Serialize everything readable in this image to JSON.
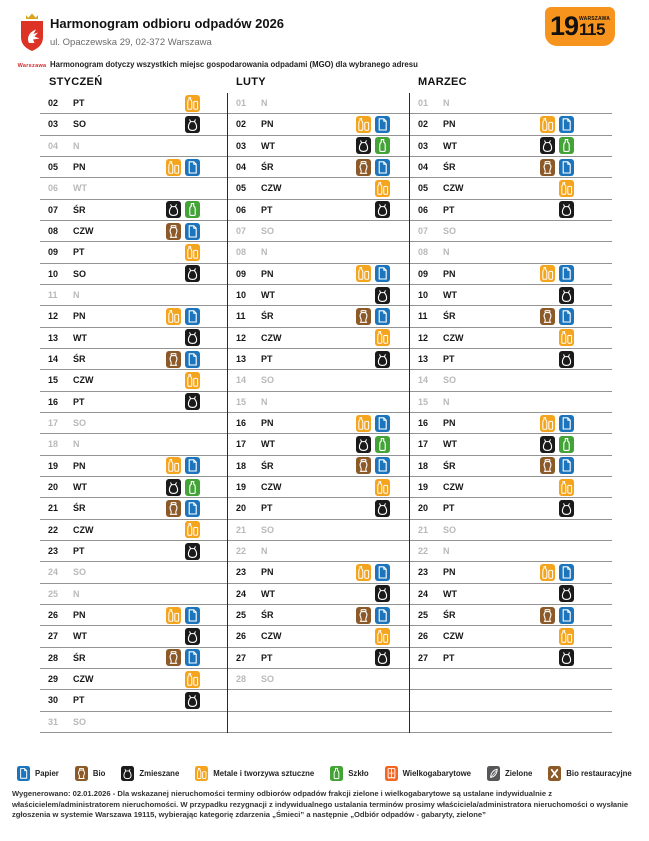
{
  "header": {
    "title": "Harmonogram odbioru odpadów 2026",
    "address": "ul. Opaczewska 29, 02-372 Warszawa",
    "note": "Harmonogram dotyczy wszystkich miejsc gospodarowania odpadami (MGO) dla wybranego adresu",
    "logo_caption": "Warszawa",
    "badge": {
      "big": "19",
      "city": "WARSZAWA",
      "small": "115"
    }
  },
  "waste_types": {
    "papier": {
      "label": "Papier",
      "color": "#1c75bc"
    },
    "bio": {
      "label": "Bio",
      "color": "#8c5a28"
    },
    "zmieszane": {
      "label": "Zmieszane",
      "color": "#1a1a1a"
    },
    "metale": {
      "label": "Metale i tworzywa sztuczne",
      "color": "#f5a41d"
    },
    "szklo": {
      "label": "Szkło",
      "color": "#43a336"
    },
    "wielkogabarytowe": {
      "label": "Wielkogabarytowe",
      "color": "#f26522"
    },
    "zielone": {
      "label": "Zielone",
      "color": "#57575a"
    },
    "bio_restauracyjne": {
      "label": "Bio restauracyjne",
      "color": "#8c5a28"
    }
  },
  "legend_order": [
    "papier",
    "bio",
    "zmieszane",
    "metale",
    "szklo",
    "wielkogabarytowe",
    "zielone",
    "bio_restauracyjne"
  ],
  "months": [
    {
      "name": "STYCZEŃ",
      "trailing_empty_rows": 0,
      "days": [
        {
          "d": "02",
          "dow": "PT",
          "active": true,
          "icons": [
            "metale"
          ]
        },
        {
          "d": "03",
          "dow": "SO",
          "active": true,
          "icons": [
            "zmieszane"
          ]
        },
        {
          "d": "04",
          "dow": "N",
          "active": false,
          "icons": []
        },
        {
          "d": "05",
          "dow": "PN",
          "active": true,
          "icons": [
            "metale",
            "papier"
          ]
        },
        {
          "d": "06",
          "dow": "WT",
          "active": false,
          "icons": []
        },
        {
          "d": "07",
          "dow": "ŚR",
          "active": true,
          "icons": [
            "zmieszane",
            "szklo"
          ]
        },
        {
          "d": "08",
          "dow": "CZW",
          "active": true,
          "icons": [
            "bio",
            "papier"
          ]
        },
        {
          "d": "09",
          "dow": "PT",
          "active": true,
          "icons": [
            "metale"
          ]
        },
        {
          "d": "10",
          "dow": "SO",
          "active": true,
          "icons": [
            "zmieszane"
          ]
        },
        {
          "d": "11",
          "dow": "N",
          "active": false,
          "icons": []
        },
        {
          "d": "12",
          "dow": "PN",
          "active": true,
          "icons": [
            "metale",
            "papier"
          ]
        },
        {
          "d": "13",
          "dow": "WT",
          "active": true,
          "icons": [
            "zmieszane"
          ]
        },
        {
          "d": "14",
          "dow": "ŚR",
          "active": true,
          "icons": [
            "bio",
            "papier"
          ]
        },
        {
          "d": "15",
          "dow": "CZW",
          "active": true,
          "icons": [
            "metale"
          ]
        },
        {
          "d": "16",
          "dow": "PT",
          "active": true,
          "icons": [
            "zmieszane"
          ]
        },
        {
          "d": "17",
          "dow": "SO",
          "active": false,
          "icons": []
        },
        {
          "d": "18",
          "dow": "N",
          "active": false,
          "icons": []
        },
        {
          "d": "19",
          "dow": "PN",
          "active": true,
          "icons": [
            "metale",
            "papier"
          ]
        },
        {
          "d": "20",
          "dow": "WT",
          "active": true,
          "icons": [
            "zmieszane",
            "szklo"
          ]
        },
        {
          "d": "21",
          "dow": "ŚR",
          "active": true,
          "icons": [
            "bio",
            "papier"
          ]
        },
        {
          "d": "22",
          "dow": "CZW",
          "active": true,
          "icons": [
            "metale"
          ]
        },
        {
          "d": "23",
          "dow": "PT",
          "active": true,
          "icons": [
            "zmieszane"
          ]
        },
        {
          "d": "24",
          "dow": "SO",
          "active": false,
          "icons": []
        },
        {
          "d": "25",
          "dow": "N",
          "active": false,
          "icons": []
        },
        {
          "d": "26",
          "dow": "PN",
          "active": true,
          "icons": [
            "metale",
            "papier"
          ]
        },
        {
          "d": "27",
          "dow": "WT",
          "active": true,
          "icons": [
            "zmieszane"
          ]
        },
        {
          "d": "28",
          "dow": "ŚR",
          "active": true,
          "icons": [
            "bio",
            "papier"
          ]
        },
        {
          "d": "29",
          "dow": "CZW",
          "active": true,
          "icons": [
            "metale"
          ]
        },
        {
          "d": "30",
          "dow": "PT",
          "active": true,
          "icons": [
            "zmieszane"
          ]
        },
        {
          "d": "31",
          "dow": "SO",
          "active": false,
          "icons": []
        }
      ]
    },
    {
      "name": "LUTY",
      "trailing_empty_rows": 2,
      "days": [
        {
          "d": "01",
          "dow": "N",
          "active": false,
          "icons": []
        },
        {
          "d": "02",
          "dow": "PN",
          "active": true,
          "icons": [
            "metale",
            "papier"
          ]
        },
        {
          "d": "03",
          "dow": "WT",
          "active": true,
          "icons": [
            "zmieszane",
            "szklo"
          ]
        },
        {
          "d": "04",
          "dow": "ŚR",
          "active": true,
          "icons": [
            "bio",
            "papier"
          ]
        },
        {
          "d": "05",
          "dow": "CZW",
          "active": true,
          "icons": [
            "metale"
          ]
        },
        {
          "d": "06",
          "dow": "PT",
          "active": true,
          "icons": [
            "zmieszane"
          ]
        },
        {
          "d": "07",
          "dow": "SO",
          "active": false,
          "icons": []
        },
        {
          "d": "08",
          "dow": "N",
          "active": false,
          "icons": []
        },
        {
          "d": "09",
          "dow": "PN",
          "active": true,
          "icons": [
            "metale",
            "papier"
          ]
        },
        {
          "d": "10",
          "dow": "WT",
          "active": true,
          "icons": [
            "zmieszane"
          ]
        },
        {
          "d": "11",
          "dow": "ŚR",
          "active": true,
          "icons": [
            "bio",
            "papier"
          ]
        },
        {
          "d": "12",
          "dow": "CZW",
          "active": true,
          "icons": [
            "metale"
          ]
        },
        {
          "d": "13",
          "dow": "PT",
          "active": true,
          "icons": [
            "zmieszane"
          ]
        },
        {
          "d": "14",
          "dow": "SO",
          "active": false,
          "icons": []
        },
        {
          "d": "15",
          "dow": "N",
          "active": false,
          "icons": []
        },
        {
          "d": "16",
          "dow": "PN",
          "active": true,
          "icons": [
            "metale",
            "papier"
          ]
        },
        {
          "d": "17",
          "dow": "WT",
          "active": true,
          "icons": [
            "zmieszane",
            "szklo"
          ]
        },
        {
          "d": "18",
          "dow": "ŚR",
          "active": true,
          "icons": [
            "bio",
            "papier"
          ]
        },
        {
          "d": "19",
          "dow": "CZW",
          "active": true,
          "icons": [
            "metale"
          ]
        },
        {
          "d": "20",
          "dow": "PT",
          "active": true,
          "icons": [
            "zmieszane"
          ]
        },
        {
          "d": "21",
          "dow": "SO",
          "active": false,
          "icons": []
        },
        {
          "d": "22",
          "dow": "N",
          "active": false,
          "icons": []
        },
        {
          "d": "23",
          "dow": "PN",
          "active": true,
          "icons": [
            "metale",
            "papier"
          ]
        },
        {
          "d": "24",
          "dow": "WT",
          "active": true,
          "icons": [
            "zmieszane"
          ]
        },
        {
          "d": "25",
          "dow": "ŚR",
          "active": true,
          "icons": [
            "bio",
            "papier"
          ]
        },
        {
          "d": "26",
          "dow": "CZW",
          "active": true,
          "icons": [
            "metale"
          ]
        },
        {
          "d": "27",
          "dow": "PT",
          "active": true,
          "icons": [
            "zmieszane"
          ]
        },
        {
          "d": "28",
          "dow": "SO",
          "active": false,
          "icons": []
        }
      ]
    },
    {
      "name": "MARZEC",
      "trailing_empty_rows": 3,
      "days": [
        {
          "d": "01",
          "dow": "N",
          "active": false,
          "icons": []
        },
        {
          "d": "02",
          "dow": "PN",
          "active": true,
          "icons": [
            "metale",
            "papier"
          ]
        },
        {
          "d": "03",
          "dow": "WT",
          "active": true,
          "icons": [
            "zmieszane",
            "szklo"
          ]
        },
        {
          "d": "04",
          "dow": "ŚR",
          "active": true,
          "icons": [
            "bio",
            "papier"
          ]
        },
        {
          "d": "05",
          "dow": "CZW",
          "active": true,
          "icons": [
            "metale"
          ]
        },
        {
          "d": "06",
          "dow": "PT",
          "active": true,
          "icons": [
            "zmieszane"
          ]
        },
        {
          "d": "07",
          "dow": "SO",
          "active": false,
          "icons": []
        },
        {
          "d": "08",
          "dow": "N",
          "active": false,
          "icons": []
        },
        {
          "d": "09",
          "dow": "PN",
          "active": true,
          "icons": [
            "metale",
            "papier"
          ]
        },
        {
          "d": "10",
          "dow": "WT",
          "active": true,
          "icons": [
            "zmieszane"
          ]
        },
        {
          "d": "11",
          "dow": "ŚR",
          "active": true,
          "icons": [
            "bio",
            "papier"
          ]
        },
        {
          "d": "12",
          "dow": "CZW",
          "active": true,
          "icons": [
            "metale"
          ]
        },
        {
          "d": "13",
          "dow": "PT",
          "active": true,
          "icons": [
            "zmieszane"
          ]
        },
        {
          "d": "14",
          "dow": "SO",
          "active": false,
          "icons": []
        },
        {
          "d": "15",
          "dow": "N",
          "active": false,
          "icons": []
        },
        {
          "d": "16",
          "dow": "PN",
          "active": true,
          "icons": [
            "metale",
            "papier"
          ]
        },
        {
          "d": "17",
          "dow": "WT",
          "active": true,
          "icons": [
            "zmieszane",
            "szklo"
          ]
        },
        {
          "d": "18",
          "dow": "ŚR",
          "active": true,
          "icons": [
            "bio",
            "papier"
          ]
        },
        {
          "d": "19",
          "dow": "CZW",
          "active": true,
          "icons": [
            "metale"
          ]
        },
        {
          "d": "20",
          "dow": "PT",
          "active": true,
          "icons": [
            "zmieszane"
          ]
        },
        {
          "d": "21",
          "dow": "SO",
          "active": false,
          "icons": []
        },
        {
          "d": "22",
          "dow": "N",
          "active": false,
          "icons": []
        },
        {
          "d": "23",
          "dow": "PN",
          "active": true,
          "icons": [
            "metale",
            "papier"
          ]
        },
        {
          "d": "24",
          "dow": "WT",
          "active": true,
          "icons": [
            "zmieszane"
          ]
        },
        {
          "d": "25",
          "dow": "ŚR",
          "active": true,
          "icons": [
            "bio",
            "papier"
          ]
        },
        {
          "d": "26",
          "dow": "CZW",
          "active": true,
          "icons": [
            "metale"
          ]
        },
        {
          "d": "27",
          "dow": "PT",
          "active": true,
          "icons": [
            "zmieszane"
          ]
        }
      ]
    }
  ],
  "footer": {
    "note": "Wygenerowano: 02.01.2026 -  Dla wskazanej nieruchomości terminy odbiorów odpadów frakcji zielone i wielkogabarytowe są ustalane indywidualnie z właścicielem/administratorem nieruchomości.  W przypadku rezygnacji z indywidualnego ustalania terminów prosimy właściciela/administratora nieruchomości o wysłanie zgłoszenia w systemie Warszawa 19115, wybierając kategorię zdarzenia „Śmieci” a następnie „Odbiór odpadów - gabaryty, zielone”"
  }
}
